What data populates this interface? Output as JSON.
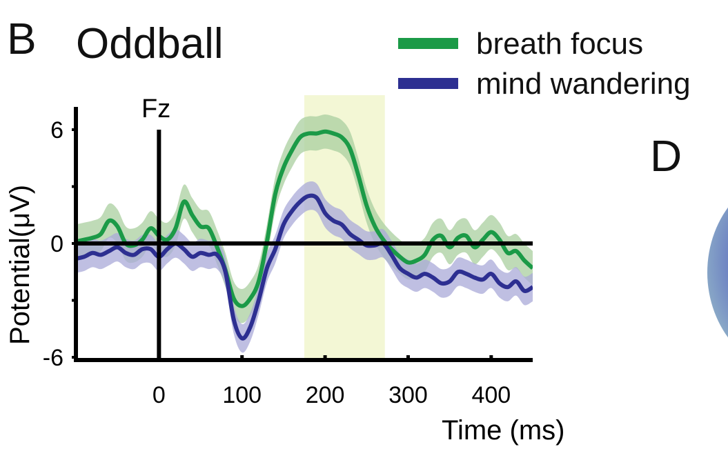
{
  "panel_b_letter": "B",
  "panel_d_letter": "D",
  "colors": {
    "breath_focus": "#1b9a47",
    "breath_focus_band": "#a9cf9f",
    "mind_wandering": "#2d2f91",
    "mind_wandering_band": "#a9a9d8",
    "highlight_window": "#f3f7d5"
  },
  "chart_data": {
    "type": "line",
    "title": "Oddball",
    "annotation": "Fz",
    "xlabel": "Time (ms)",
    "ylabel": "Potential(μV)",
    "xlim": [
      -100,
      450
    ],
    "ylim": [
      -6,
      7.5
    ],
    "x_ticks": [
      0,
      100,
      200,
      300,
      400
    ],
    "y_ticks": [
      6,
      0,
      -6
    ],
    "y_tick_labels": [
      "6",
      "0",
      "-6"
    ],
    "highlight_window": [
      175,
      272
    ],
    "legend_position": "top-right",
    "x": [
      -100,
      -90,
      -80,
      -70,
      -60,
      -50,
      -40,
      -30,
      -20,
      -10,
      0,
      10,
      20,
      30,
      40,
      50,
      60,
      70,
      80,
      90,
      100,
      110,
      120,
      130,
      140,
      150,
      160,
      170,
      180,
      190,
      200,
      210,
      220,
      230,
      240,
      250,
      260,
      270,
      280,
      290,
      300,
      310,
      320,
      330,
      340,
      350,
      360,
      370,
      380,
      390,
      400,
      410,
      420,
      430,
      440,
      450
    ],
    "series": [
      {
        "name": "breath focus",
        "values": [
          0.1,
          0.2,
          0.3,
          0.5,
          1.2,
          0.9,
          0,
          -0.1,
          0.2,
          0.8,
          0.4,
          0.2,
          0.8,
          2.2,
          1.5,
          0.9,
          0.8,
          -0.2,
          -1.4,
          -2.9,
          -3.3,
          -2.9,
          -2.0,
          0.1,
          2.6,
          4.0,
          4.9,
          5.6,
          5.8,
          5.8,
          5.9,
          5.8,
          5.6,
          5.0,
          3.6,
          2.0,
          0.9,
          0.2,
          -0.3,
          -0.7,
          -1.0,
          -0.9,
          -0.6,
          0.2,
          0.4,
          -0.2,
          0.3,
          0.4,
          -0.2,
          0.2,
          0.6,
          0.2,
          -0.5,
          -0.4,
          -0.9,
          -1.3
        ]
      },
      {
        "name": "mind wandering",
        "values": [
          -0.8,
          -0.7,
          -0.5,
          -0.6,
          -0.4,
          -0.2,
          -0.5,
          -0.6,
          -0.3,
          -0.3,
          -0.7,
          -0.3,
          0.0,
          -0.3,
          -0.7,
          -0.5,
          -0.6,
          -0.6,
          -1.5,
          -4.0,
          -5.0,
          -4.4,
          -3.0,
          -1.3,
          -0.3,
          1.0,
          1.7,
          2.2,
          2.5,
          2.4,
          1.6,
          1.2,
          1.0,
          0.5,
          0.2,
          -0.1,
          -0.1,
          0.0,
          -0.6,
          -1.3,
          -1.6,
          -1.8,
          -1.6,
          -1.8,
          -2.1,
          -2.0,
          -1.5,
          -1.6,
          -1.8,
          -1.9,
          -1.6,
          -2.1,
          -2.3,
          -2.0,
          -2.5,
          -2.3
        ]
      }
    ]
  }
}
